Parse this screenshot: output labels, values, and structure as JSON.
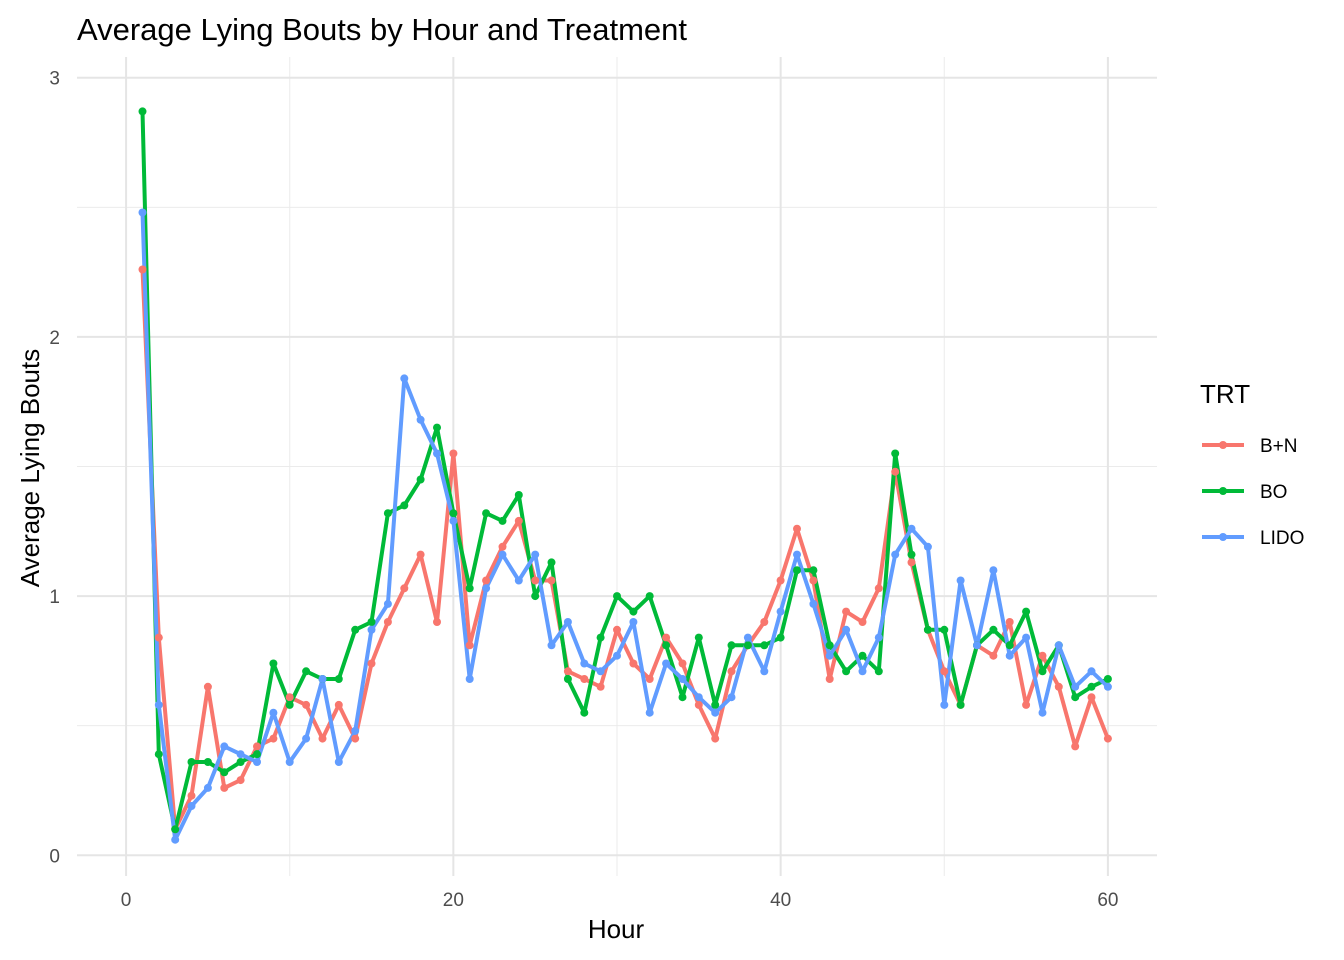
{
  "chart_data": {
    "type": "line",
    "title": "Average Lying Bouts by Hour and Treatment",
    "xlabel": "Hour",
    "ylabel": "Average Lying Bouts",
    "xlim": [
      -3.0,
      63.0
    ],
    "ylim": [
      -0.08,
      3.08
    ],
    "x_ticks": [
      0,
      20,
      40,
      60
    ],
    "y_ticks": [
      0,
      1,
      2,
      3
    ],
    "x_minor": [
      10,
      30,
      50
    ],
    "y_minor": [
      0.5,
      1.5,
      2.5
    ],
    "grid": true,
    "legend": {
      "title": "TRT",
      "position": "right"
    },
    "x": [
      1,
      2,
      3,
      4,
      5,
      6,
      7,
      8,
      9,
      10,
      11,
      12,
      13,
      14,
      15,
      16,
      17,
      18,
      19,
      20,
      21,
      22,
      23,
      24,
      25,
      26,
      27,
      28,
      29,
      30,
      31,
      32,
      33,
      34,
      35,
      36,
      37,
      38,
      39,
      40,
      41,
      42,
      43,
      44,
      45,
      46,
      47,
      48,
      49,
      50,
      51,
      52,
      53,
      54,
      55,
      56,
      57,
      58,
      59,
      60
    ],
    "series": [
      {
        "name": "B+N",
        "color": "#F8766D",
        "values": [
          2.26,
          0.84,
          0.1,
          0.23,
          0.65,
          0.26,
          0.29,
          0.42,
          0.45,
          0.61,
          0.58,
          0.45,
          0.58,
          0.45,
          0.74,
          0.9,
          1.03,
          1.16,
          0.9,
          1.55,
          0.81,
          1.06,
          1.19,
          1.29,
          1.06,
          1.06,
          0.71,
          0.68,
          0.65,
          0.87,
          0.74,
          0.68,
          0.84,
          0.74,
          0.58,
          0.45,
          0.71,
          0.81,
          0.9,
          1.06,
          1.26,
          1.06,
          0.68,
          0.94,
          0.9,
          1.03,
          1.48,
          1.13,
          0.87,
          0.71,
          0.58,
          0.81,
          0.77,
          0.9,
          0.58,
          0.77,
          0.65,
          0.42,
          0.61,
          0.45
        ]
      },
      {
        "name": "BO",
        "color": "#00BA38",
        "values": [
          2.87,
          0.39,
          0.1,
          0.36,
          0.36,
          0.32,
          0.36,
          0.39,
          0.74,
          0.58,
          0.71,
          0.68,
          0.68,
          0.87,
          0.9,
          1.32,
          1.35,
          1.45,
          1.65,
          1.32,
          1.03,
          1.32,
          1.29,
          1.39,
          1.0,
          1.13,
          0.68,
          0.55,
          0.84,
          1.0,
          0.94,
          1.0,
          0.81,
          0.61,
          0.84,
          0.58,
          0.81,
          0.81,
          0.81,
          0.84,
          1.1,
          1.1,
          0.81,
          0.71,
          0.77,
          0.71,
          1.55,
          1.16,
          0.87,
          0.87,
          0.58,
          0.81,
          0.87,
          0.81,
          0.94,
          0.71,
          0.81,
          0.61,
          0.65,
          0.68
        ]
      },
      {
        "name": "LIDO",
        "color": "#619CFF",
        "values": [
          2.48,
          0.58,
          0.06,
          0.19,
          0.26,
          0.42,
          0.39,
          0.36,
          0.55,
          0.36,
          0.45,
          0.68,
          0.36,
          0.48,
          0.87,
          0.97,
          1.84,
          1.68,
          1.55,
          1.29,
          0.68,
          1.03,
          1.16,
          1.06,
          1.16,
          0.81,
          0.9,
          0.74,
          0.71,
          0.77,
          0.9,
          0.55,
          0.74,
          0.68,
          0.61,
          0.55,
          0.61,
          0.84,
          0.71,
          0.94,
          1.16,
          0.97,
          0.77,
          0.87,
          0.71,
          0.84,
          1.16,
          1.26,
          1.19,
          0.58,
          1.06,
          0.81,
          1.1,
          0.77,
          0.84,
          0.55,
          0.81,
          0.65,
          0.71,
          0.65
        ]
      }
    ]
  }
}
